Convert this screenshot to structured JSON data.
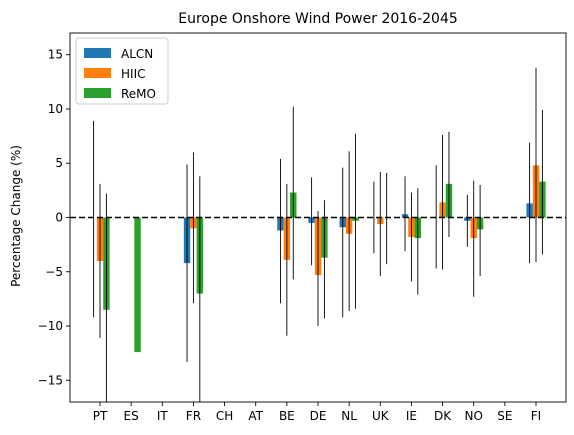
{
  "chart_data": {
    "type": "bar",
    "title": "Europe Onshore Wind Power 2016-2045",
    "xlabel": "",
    "ylabel": "Percentage Change (%)",
    "ylim": [
      -17,
      17
    ],
    "yticks": [
      -15,
      -10,
      -5,
      0,
      5,
      10,
      15
    ],
    "ytick_labels": [
      "−15",
      "−10",
      "−5",
      "0",
      "5",
      "10",
      "15"
    ],
    "grid": false,
    "legend_position": "top-left",
    "zero_line": "dashed",
    "categories": [
      "PT",
      "ES",
      "IT",
      "FR",
      "CH",
      "AT",
      "BE",
      "DE",
      "NL",
      "UK",
      "IE",
      "DK",
      "NO",
      "SE",
      "FI"
    ],
    "series": [
      {
        "name": "ALCN",
        "color": "#1f77b4",
        "values": [
          0,
          0,
          0,
          -4.2,
          0,
          0,
          -1.2,
          -0.5,
          -0.9,
          0,
          0.3,
          0,
          -0.3,
          0,
          1.3
        ],
        "err_low": [
          -9.2,
          null,
          null,
          -13.3,
          null,
          null,
          -7.9,
          -4.4,
          -9.2,
          -3.3,
          -3.1,
          -4.7,
          -2.7,
          null,
          -4.2
        ],
        "err_high": [
          8.9,
          null,
          null,
          4.9,
          null,
          null,
          5.4,
          3.7,
          4.6,
          3.3,
          3.8,
          4.8,
          2.1,
          null,
          6.9
        ]
      },
      {
        "name": "HIIC",
        "color": "#ff7f0e",
        "values": [
          -4.0,
          0,
          0,
          -1.0,
          0,
          0,
          -3.9,
          -5.3,
          -1.5,
          -0.6,
          -1.8,
          1.4,
          -1.9,
          0,
          4.8
        ],
        "err_low": [
          -11.1,
          null,
          null,
          -7.9,
          null,
          null,
          -10.9,
          -10.0,
          -8.6,
          -5.4,
          -5.9,
          -4.8,
          -7.3,
          null,
          -4.1
        ],
        "err_high": [
          3.1,
          null,
          null,
          6.0,
          null,
          null,
          3.1,
          0.6,
          6.1,
          4.2,
          2.3,
          7.6,
          3.4,
          null,
          13.8
        ]
      },
      {
        "name": "ReMO",
        "color": "#2ca02c",
        "values": [
          -8.5,
          -12.4,
          0,
          -7.0,
          0,
          0,
          2.3,
          -3.7,
          -0.3,
          0,
          -1.9,
          3.1,
          -1.1,
          0,
          3.3
        ],
        "err_low": [
          -17.5,
          null,
          null,
          -17.5,
          null,
          null,
          -5.7,
          -9.3,
          -8.4,
          -4.3,
          -7.1,
          -1.8,
          -5.4,
          null,
          -3.4
        ],
        "err_high": [
          2.2,
          null,
          null,
          3.8,
          null,
          null,
          10.2,
          1.6,
          7.7,
          4.1,
          2.7,
          7.9,
          3.0,
          null,
          9.9
        ]
      }
    ]
  }
}
